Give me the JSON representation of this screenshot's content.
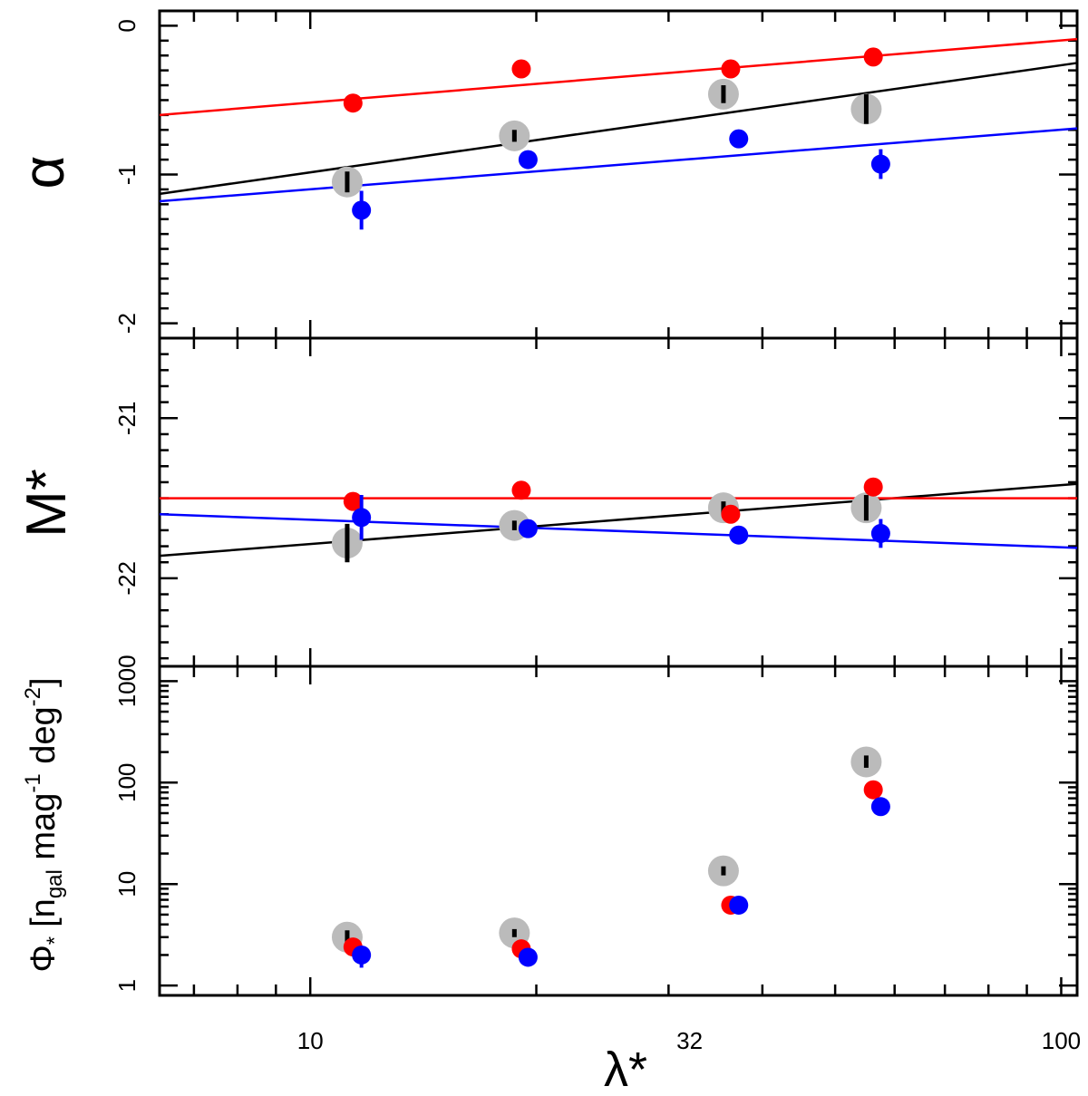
{
  "chart_data": {
    "type": "scatter",
    "x_axis": {
      "label": "λ*",
      "scale": "log",
      "range": [
        6.3,
        105
      ],
      "tick_labels": [
        "10",
        "32",
        "100"
      ],
      "tick_values": [
        10,
        32,
        100
      ]
    },
    "panels": [
      {
        "id": "alpha",
        "ylabel": "α",
        "scale": "linear",
        "ylim": [
          -2.1,
          0.1
        ],
        "tick_labels": [
          "0",
          "-1",
          "-2"
        ],
        "tick_values": [
          0,
          -1,
          -2
        ],
        "series": [
          {
            "color": "#bbbbbb",
            "marker": "large-gray",
            "points": [
              {
                "x": 11.2,
                "y": -1.05,
                "err": 0.07
              },
              {
                "x": 18.7,
                "y": -0.74,
                "err": 0.04
              },
              {
                "x": 35.5,
                "y": -0.46,
                "err": 0.06
              },
              {
                "x": 55.0,
                "y": -0.56,
                "err": 0.1
              }
            ]
          },
          {
            "color": "#ff0000",
            "marker": "circle",
            "points": [
              {
                "x": 11.4,
                "y": -0.52,
                "err": 0.0
              },
              {
                "x": 19.1,
                "y": -0.29,
                "err": 0.0
              },
              {
                "x": 36.3,
                "y": -0.29,
                "err": 0.0
              },
              {
                "x": 56.2,
                "y": -0.21,
                "err": 0.05
              }
            ]
          },
          {
            "color": "#0000ff",
            "marker": "circle",
            "points": [
              {
                "x": 11.7,
                "y": -1.24,
                "err": 0.13
              },
              {
                "x": 19.5,
                "y": -0.9,
                "err": 0.0
              },
              {
                "x": 37.2,
                "y": -0.76,
                "err": 0.0
              },
              {
                "x": 57.5,
                "y": -0.93,
                "err": 0.1
              }
            ]
          }
        ],
        "fit_lines": [
          {
            "color": "#000000",
            "y_start": -1.13,
            "y_end": -0.25
          },
          {
            "color": "#ff0000",
            "y_start": -0.6,
            "y_end": -0.09
          },
          {
            "color": "#0000ff",
            "y_start": -1.18,
            "y_end": -0.69
          }
        ]
      },
      {
        "id": "mstar",
        "ylabel": "M*",
        "scale": "linear",
        "ylim": [
          -22.55,
          -20.5
        ],
        "tick_labels": [
          "-21",
          "-22"
        ],
        "tick_values": [
          -21,
          -22
        ],
        "series": [
          {
            "color": "#bbbbbb",
            "marker": "large-gray",
            "points": [
              {
                "x": 11.2,
                "y": -21.78,
                "err": 0.12
              },
              {
                "x": 18.7,
                "y": -21.67,
                "err": 0.03
              },
              {
                "x": 35.5,
                "y": -21.56,
                "err": 0.04
              },
              {
                "x": 55.0,
                "y": -21.56,
                "err": 0.08
              }
            ]
          },
          {
            "color": "#ff0000",
            "marker": "circle",
            "points": [
              {
                "x": 11.4,
                "y": -21.52,
                "err": 0.0
              },
              {
                "x": 19.1,
                "y": -21.45,
                "err": 0.0
              },
              {
                "x": 36.3,
                "y": -21.6,
                "err": 0.0
              },
              {
                "x": 56.2,
                "y": -21.43,
                "err": 0.0
              }
            ]
          },
          {
            "color": "#0000ff",
            "marker": "circle",
            "points": [
              {
                "x": 11.7,
                "y": -21.62,
                "err": 0.14
              },
              {
                "x": 19.5,
                "y": -21.69,
                "err": 0.0
              },
              {
                "x": 37.2,
                "y": -21.73,
                "err": 0.0
              },
              {
                "x": 57.5,
                "y": -21.72,
                "err": 0.09
              }
            ]
          }
        ],
        "fit_lines": [
          {
            "color": "#000000",
            "y_start": -21.86,
            "y_end": -21.41
          },
          {
            "color": "#ff0000",
            "y_start": -21.5,
            "y_end": -21.5
          },
          {
            "color": "#0000ff",
            "y_start": -21.6,
            "y_end": -21.81
          }
        ]
      },
      {
        "id": "phistar",
        "ylabel_parts": [
          "Φ",
          "*",
          "[n",
          "gal",
          " mag",
          "-1",
          " deg",
          "-2",
          "]"
        ],
        "scale": "log",
        "ylim": [
          0.8,
          1400
        ],
        "tick_labels": [
          "1",
          "10",
          "100",
          "1000"
        ],
        "tick_values": [
          1,
          10,
          100,
          1000
        ],
        "series": [
          {
            "color": "#bbbbbb",
            "marker": "large-gray",
            "points": [
              {
                "x": 11.2,
                "y": 3.0,
                "err_lo": 2.6,
                "err_hi": 3.5
              },
              {
                "x": 18.7,
                "y": 3.3,
                "err_lo": 3.0,
                "err_hi": 3.6
              },
              {
                "x": 35.5,
                "y": 13.5,
                "err_lo": 12.5,
                "err_hi": 14.5
              },
              {
                "x": 55.0,
                "y": 160,
                "err_lo": 140,
                "err_hi": 185
              }
            ]
          },
          {
            "color": "#ff0000",
            "marker": "circle",
            "points": [
              {
                "x": 11.4,
                "y": 2.4,
                "err_lo": 2.4,
                "err_hi": 2.4
              },
              {
                "x": 19.1,
                "y": 2.3,
                "err_lo": 2.3,
                "err_hi": 2.3
              },
              {
                "x": 36.3,
                "y": 6.2,
                "err_lo": 6.2,
                "err_hi": 6.2
              },
              {
                "x": 56.2,
                "y": 85,
                "err_lo": 85,
                "err_hi": 85
              }
            ]
          },
          {
            "color": "#0000ff",
            "marker": "circle",
            "points": [
              {
                "x": 11.7,
                "y": 2.0,
                "err_lo": 1.5,
                "err_hi": 2.4
              },
              {
                "x": 19.5,
                "y": 1.9,
                "err_lo": 1.9,
                "err_hi": 1.9
              },
              {
                "x": 37.2,
                "y": 6.2,
                "err_lo": 6.2,
                "err_hi": 6.2
              },
              {
                "x": 57.5,
                "y": 58,
                "err_lo": 53,
                "err_hi": 62
              }
            ]
          }
        ],
        "fit_lines": []
      }
    ]
  }
}
